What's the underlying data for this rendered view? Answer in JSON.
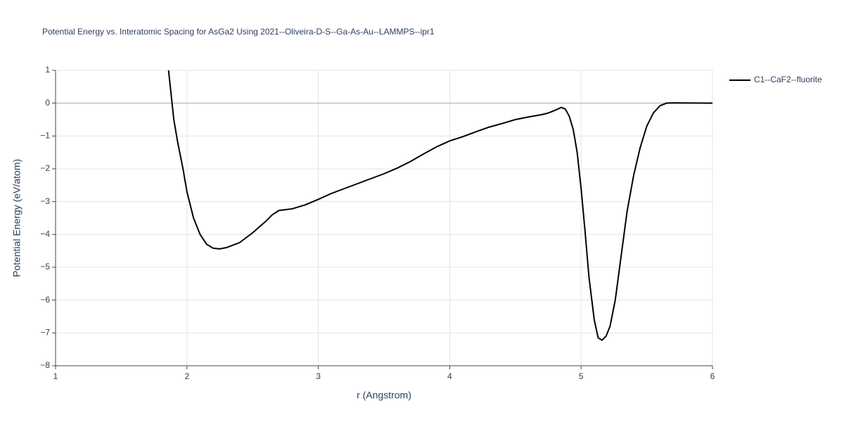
{
  "chart_data": {
    "type": "line",
    "title": "Potential Energy vs. Interatomic Spacing for AsGa2 Using 2021--Oliveira-D-S--Ga-As-Au--LAMMPS--ipr1",
    "x_label": "r (Angstrom)",
    "y_label": "Potential Energy (eV/atom)",
    "xlim": [
      1,
      6
    ],
    "ylim": [
      -8,
      1
    ],
    "xticks": [
      1,
      2,
      3,
      4,
      5,
      6
    ],
    "yticks": [
      1,
      0,
      {
        "value": -1,
        "label": "−1"
      },
      {
        "value": -2,
        "label": "−2"
      },
      {
        "value": -3,
        "label": "−3"
      },
      {
        "value": -4,
        "label": "−4"
      },
      {
        "value": -5,
        "label": "−5"
      },
      {
        "value": -6,
        "label": "−6"
      },
      {
        "value": -7,
        "label": "−7"
      },
      {
        "value": -8,
        "label": "−8"
      }
    ],
    "grid": true,
    "legend_position": "right",
    "x": [
      1.86,
      1.9,
      1.93,
      1.97,
      2.0,
      2.05,
      2.1,
      2.15,
      2.2,
      2.25,
      2.3,
      2.4,
      2.5,
      2.6,
      2.65,
      2.7,
      2.8,
      2.9,
      3.0,
      3.1,
      3.2,
      3.3,
      3.4,
      3.5,
      3.6,
      3.7,
      3.8,
      3.9,
      4.0,
      4.1,
      4.2,
      4.3,
      4.4,
      4.5,
      4.6,
      4.7,
      4.75,
      4.8,
      4.85,
      4.88,
      4.91,
      4.94,
      4.97,
      5.0,
      5.03,
      5.06,
      5.1,
      5.13,
      5.16,
      5.19,
      5.22,
      5.26,
      5.3,
      5.35,
      5.4,
      5.45,
      5.5,
      5.55,
      5.6,
      5.65,
      5.7,
      6.0
    ],
    "series": [
      {
        "name": "C1--CaF2--fluorite",
        "color": "#000000",
        "values": [
          1.0,
          -0.5,
          -1.2,
          -2.0,
          -2.7,
          -3.5,
          -4.0,
          -4.3,
          -4.42,
          -4.44,
          -4.4,
          -4.25,
          -3.95,
          -3.6,
          -3.4,
          -3.27,
          -3.22,
          -3.1,
          -2.93,
          -2.75,
          -2.6,
          -2.45,
          -2.3,
          -2.15,
          -1.98,
          -1.78,
          -1.55,
          -1.33,
          -1.15,
          -1.02,
          -0.87,
          -0.73,
          -0.62,
          -0.5,
          -0.42,
          -0.35,
          -0.3,
          -0.22,
          -0.13,
          -0.18,
          -0.4,
          -0.8,
          -1.5,
          -2.6,
          -3.9,
          -5.3,
          -6.6,
          -7.15,
          -7.22,
          -7.1,
          -6.8,
          -6.0,
          -4.8,
          -3.3,
          -2.2,
          -1.35,
          -0.7,
          -0.3,
          -0.08,
          0.0,
          0.01,
          0.0
        ]
      }
    ]
  }
}
